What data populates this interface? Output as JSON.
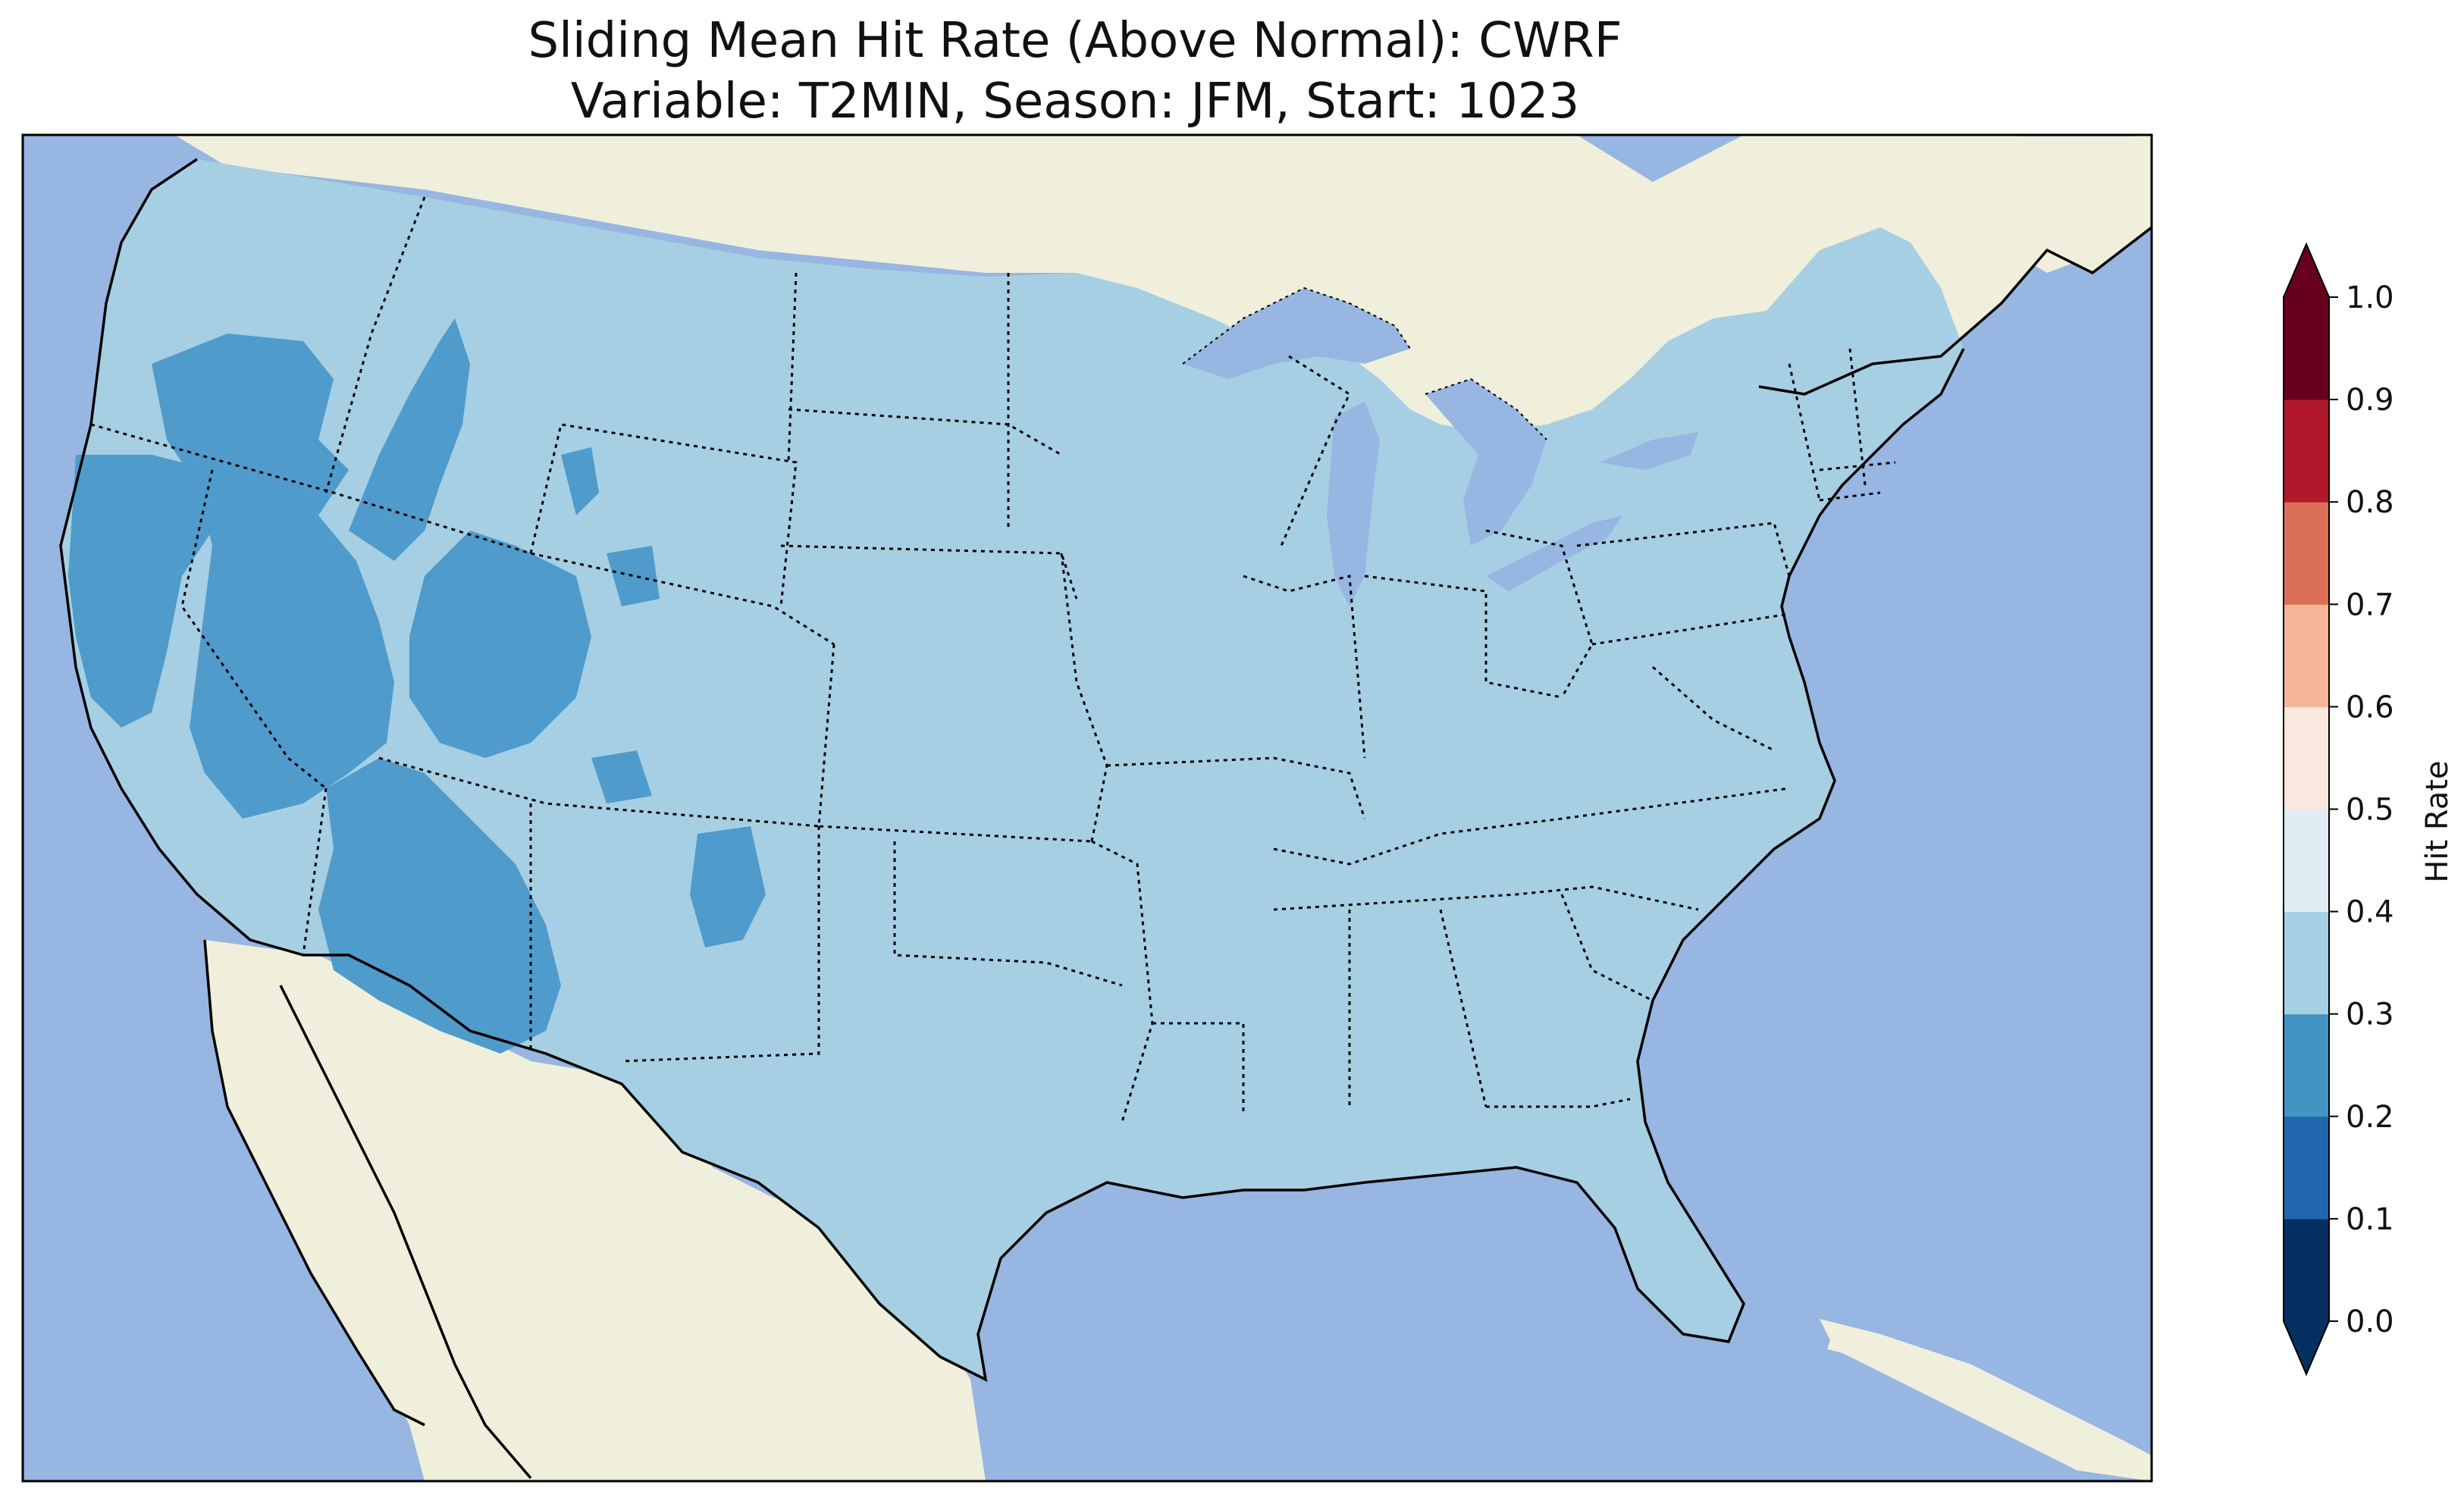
{
  "figure": {
    "title_line1": "Sliding Mean Hit Rate (Above Normal): CWRF",
    "title_line2": "Variable: T2MIN, Season: JFM, Start: 1023"
  },
  "map": {
    "ocean_color": "#97b6e1",
    "land_color": "#efefdb",
    "lake_color": "#97b6e1",
    "boundary_color": "#000000",
    "regions": [
      {
        "name": "conus-background",
        "class": "0.3-0.4",
        "color": "#a6cfe3"
      },
      {
        "name": "west-coast",
        "class": "0.2-0.3",
        "color": "#4f9bcb"
      },
      {
        "name": "great-basin",
        "class": "0.2-0.3",
        "color": "#4f9bcb"
      },
      {
        "name": "desert-southwest",
        "class": "0.2-0.3",
        "color": "#4f9bcb"
      },
      {
        "name": "rockies",
        "class": "0.2-0.3",
        "color": "#4f9bcb"
      },
      {
        "name": "new-mexico",
        "class": "0.2-0.3",
        "color": "#4f9bcb"
      }
    ]
  },
  "colorbar": {
    "label": "Hit Rate",
    "extend": "both",
    "ticks": [
      "0.0",
      "0.1",
      "0.2",
      "0.3",
      "0.4",
      "0.5",
      "0.6",
      "0.7",
      "0.8",
      "0.9",
      "1.0"
    ],
    "bins": [
      {
        "range": [
          0.0,
          0.1
        ],
        "color": "#053061"
      },
      {
        "range": [
          0.1,
          0.2
        ],
        "color": "#2166ac"
      },
      {
        "range": [
          0.2,
          0.3
        ],
        "color": "#4393c3"
      },
      {
        "range": [
          0.3,
          0.4
        ],
        "color": "#a6cfe3"
      },
      {
        "range": [
          0.4,
          0.5
        ],
        "color": "#e0ecf3"
      },
      {
        "range": [
          0.5,
          0.6
        ],
        "color": "#fae8de"
      },
      {
        "range": [
          0.6,
          0.7
        ],
        "color": "#f4b598"
      },
      {
        "range": [
          0.7,
          0.8
        ],
        "color": "#dc6f58"
      },
      {
        "range": [
          0.8,
          0.9
        ],
        "color": "#b2182b"
      },
      {
        "range": [
          0.9,
          1.0
        ],
        "color": "#67001f"
      }
    ],
    "under_color": "#053061",
    "over_color": "#67001f"
  }
}
